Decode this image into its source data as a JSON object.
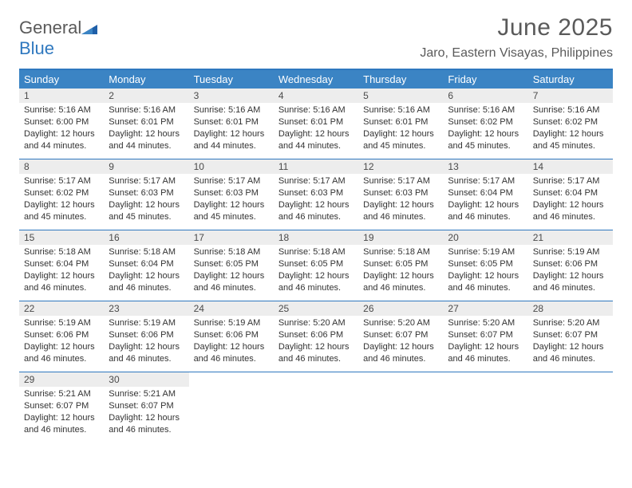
{
  "logo": {
    "word1": "General",
    "word2": "Blue"
  },
  "title": "June 2025",
  "location": "Jaro, Eastern Visayas, Philippines",
  "colors": {
    "header_bg": "#3b84c4",
    "border": "#2f78bf",
    "daynum_bg": "#ededed",
    "text": "#333333",
    "muted": "#5a5a5a",
    "white": "#ffffff"
  },
  "weekdays": [
    "Sunday",
    "Monday",
    "Tuesday",
    "Wednesday",
    "Thursday",
    "Friday",
    "Saturday"
  ],
  "weeks": [
    [
      {
        "n": "1",
        "sr": "5:16 AM",
        "ss": "6:00 PM",
        "dl": "12 hours and 44 minutes."
      },
      {
        "n": "2",
        "sr": "5:16 AM",
        "ss": "6:01 PM",
        "dl": "12 hours and 44 minutes."
      },
      {
        "n": "3",
        "sr": "5:16 AM",
        "ss": "6:01 PM",
        "dl": "12 hours and 44 minutes."
      },
      {
        "n": "4",
        "sr": "5:16 AM",
        "ss": "6:01 PM",
        "dl": "12 hours and 44 minutes."
      },
      {
        "n": "5",
        "sr": "5:16 AM",
        "ss": "6:01 PM",
        "dl": "12 hours and 45 minutes."
      },
      {
        "n": "6",
        "sr": "5:16 AM",
        "ss": "6:02 PM",
        "dl": "12 hours and 45 minutes."
      },
      {
        "n": "7",
        "sr": "5:16 AM",
        "ss": "6:02 PM",
        "dl": "12 hours and 45 minutes."
      }
    ],
    [
      {
        "n": "8",
        "sr": "5:17 AM",
        "ss": "6:02 PM",
        "dl": "12 hours and 45 minutes."
      },
      {
        "n": "9",
        "sr": "5:17 AM",
        "ss": "6:03 PM",
        "dl": "12 hours and 45 minutes."
      },
      {
        "n": "10",
        "sr": "5:17 AM",
        "ss": "6:03 PM",
        "dl": "12 hours and 45 minutes."
      },
      {
        "n": "11",
        "sr": "5:17 AM",
        "ss": "6:03 PM",
        "dl": "12 hours and 46 minutes."
      },
      {
        "n": "12",
        "sr": "5:17 AM",
        "ss": "6:03 PM",
        "dl": "12 hours and 46 minutes."
      },
      {
        "n": "13",
        "sr": "5:17 AM",
        "ss": "6:04 PM",
        "dl": "12 hours and 46 minutes."
      },
      {
        "n": "14",
        "sr": "5:17 AM",
        "ss": "6:04 PM",
        "dl": "12 hours and 46 minutes."
      }
    ],
    [
      {
        "n": "15",
        "sr": "5:18 AM",
        "ss": "6:04 PM",
        "dl": "12 hours and 46 minutes."
      },
      {
        "n": "16",
        "sr": "5:18 AM",
        "ss": "6:04 PM",
        "dl": "12 hours and 46 minutes."
      },
      {
        "n": "17",
        "sr": "5:18 AM",
        "ss": "6:05 PM",
        "dl": "12 hours and 46 minutes."
      },
      {
        "n": "18",
        "sr": "5:18 AM",
        "ss": "6:05 PM",
        "dl": "12 hours and 46 minutes."
      },
      {
        "n": "19",
        "sr": "5:18 AM",
        "ss": "6:05 PM",
        "dl": "12 hours and 46 minutes."
      },
      {
        "n": "20",
        "sr": "5:19 AM",
        "ss": "6:05 PM",
        "dl": "12 hours and 46 minutes."
      },
      {
        "n": "21",
        "sr": "5:19 AM",
        "ss": "6:06 PM",
        "dl": "12 hours and 46 minutes."
      }
    ],
    [
      {
        "n": "22",
        "sr": "5:19 AM",
        "ss": "6:06 PM",
        "dl": "12 hours and 46 minutes."
      },
      {
        "n": "23",
        "sr": "5:19 AM",
        "ss": "6:06 PM",
        "dl": "12 hours and 46 minutes."
      },
      {
        "n": "24",
        "sr": "5:19 AM",
        "ss": "6:06 PM",
        "dl": "12 hours and 46 minutes."
      },
      {
        "n": "25",
        "sr": "5:20 AM",
        "ss": "6:06 PM",
        "dl": "12 hours and 46 minutes."
      },
      {
        "n": "26",
        "sr": "5:20 AM",
        "ss": "6:07 PM",
        "dl": "12 hours and 46 minutes."
      },
      {
        "n": "27",
        "sr": "5:20 AM",
        "ss": "6:07 PM",
        "dl": "12 hours and 46 minutes."
      },
      {
        "n": "28",
        "sr": "5:20 AM",
        "ss": "6:07 PM",
        "dl": "12 hours and 46 minutes."
      }
    ],
    [
      {
        "n": "29",
        "sr": "5:21 AM",
        "ss": "6:07 PM",
        "dl": "12 hours and 46 minutes."
      },
      {
        "n": "30",
        "sr": "5:21 AM",
        "ss": "6:07 PM",
        "dl": "12 hours and 46 minutes."
      },
      null,
      null,
      null,
      null,
      null
    ]
  ],
  "labels": {
    "sunrise": "Sunrise:",
    "sunset": "Sunset:",
    "daylight": "Daylight:"
  }
}
